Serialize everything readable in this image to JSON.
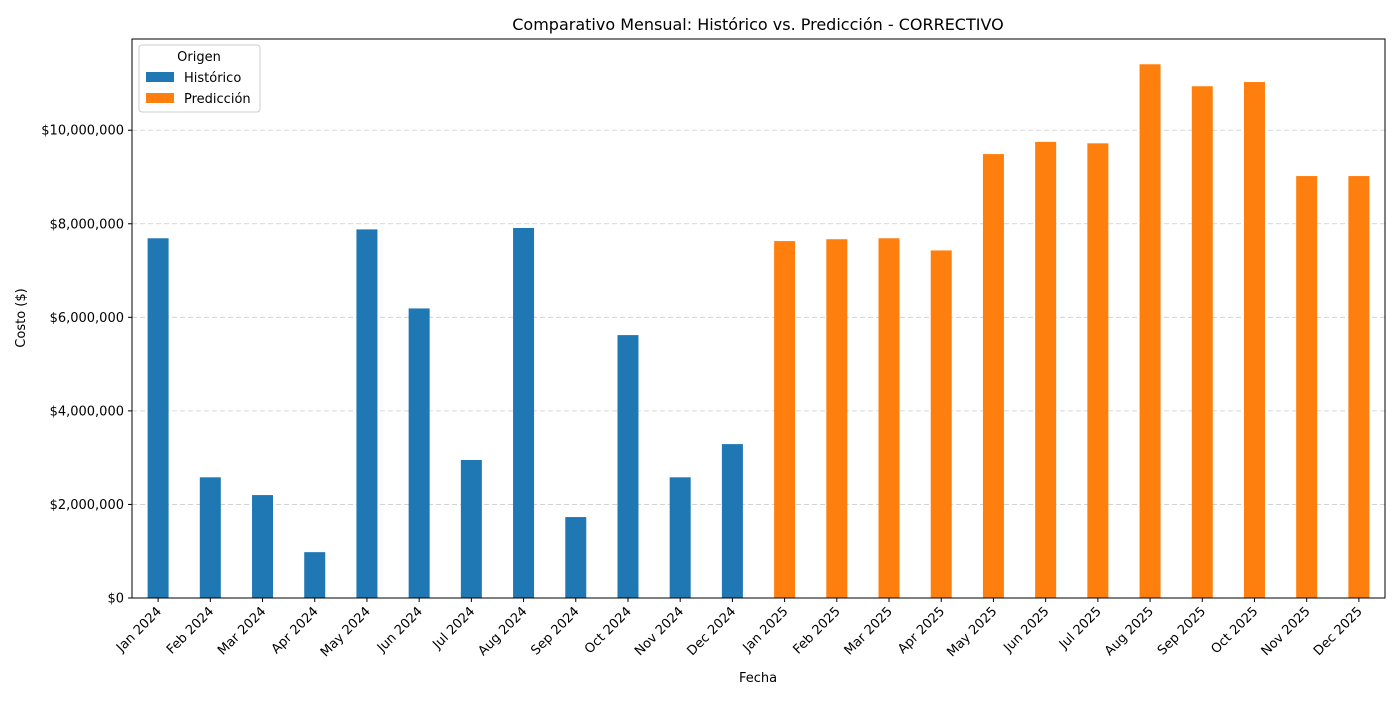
{
  "chart_data": {
    "type": "bar",
    "title": "Comparativo Mensual: Histórico vs. Predicción - CORRECTIVO",
    "xlabel": "Fecha",
    "ylabel": "Costo ($)",
    "ylim": [
      0,
      11950000
    ],
    "yticks": [
      0,
      2000000,
      4000000,
      6000000,
      8000000,
      10000000
    ],
    "ytick_labels": [
      "$0",
      "$2,000,000",
      "$4,000,000",
      "$6,000,000",
      "$8,000,000",
      "$10,000,000"
    ],
    "grid": "horizontal dashed",
    "legend": {
      "title": "Origen",
      "placement": "top-left"
    },
    "categories": [
      "Jan 2024",
      "Feb 2024",
      "Mar 2024",
      "Apr 2024",
      "May 2024",
      "Jun 2024",
      "Jul 2024",
      "Aug 2024",
      "Sep 2024",
      "Oct 2024",
      "Nov 2024",
      "Dec 2024",
      "Jan 2025",
      "Feb 2025",
      "Mar 2025",
      "Apr 2025",
      "May 2025",
      "Jun 2025",
      "Jul 2025",
      "Aug 2025",
      "Sep 2025",
      "Oct 2025",
      "Nov 2025",
      "Dec 2025"
    ],
    "series": [
      {
        "name": "Histórico",
        "color": "#1f77b4",
        "values": [
          7690000,
          2580000,
          2200000,
          980000,
          7880000,
          6190000,
          2950000,
          7910000,
          1730000,
          5620000,
          2580000,
          3290000,
          null,
          null,
          null,
          null,
          null,
          null,
          null,
          null,
          null,
          null,
          null,
          null
        ]
      },
      {
        "name": "Predicción",
        "color": "#ff7f0e",
        "values": [
          null,
          null,
          null,
          null,
          null,
          null,
          null,
          null,
          null,
          null,
          null,
          null,
          7630000,
          7670000,
          7690000,
          7430000,
          9490000,
          9750000,
          9720000,
          11410000,
          10940000,
          11030000,
          9020000,
          9020000
        ]
      }
    ]
  }
}
